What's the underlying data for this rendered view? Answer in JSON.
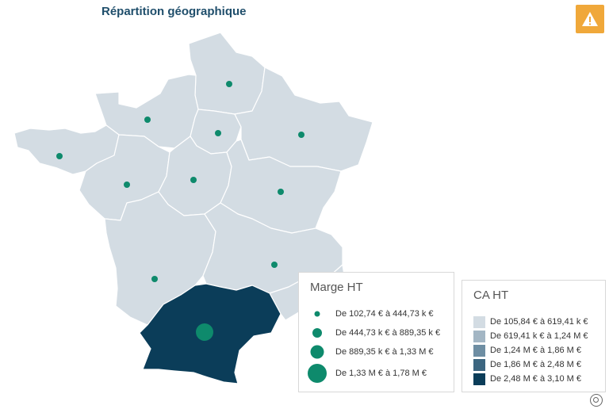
{
  "title": "Répartition géographique",
  "colors": {
    "region_default": "#d3dce3",
    "region_highlight": "#0b3d59",
    "dot": "#0e8a6c",
    "warning": "#f0a83a"
  },
  "warning_button": {
    "icon": "warning-triangle-icon"
  },
  "legend_marge": {
    "title": "Marge HT",
    "items": [
      {
        "label": "De 102,74 € à 444,73 k €"
      },
      {
        "label": "De 444,73 k € à 889,35 k €"
      },
      {
        "label": "De 889,35 k € à 1,33 M €"
      },
      {
        "label": "De 1,33 M € à 1,78 M €"
      }
    ]
  },
  "legend_ca": {
    "title": "CA HT",
    "items": [
      {
        "label": "De 105,84 € à 619,41 k €",
        "color": "#d3dce3"
      },
      {
        "label": "De 619,41 k € à 1,24 M €",
        "color": "#a3b6c4"
      },
      {
        "label": "De 1,24 M € à 1,86 M €",
        "color": "#6e8ea3"
      },
      {
        "label": "De 1,86 M € à 2,48 M €",
        "color": "#3c6680"
      },
      {
        "label": "De 2,48 M € à 3,10 M €",
        "color": "#0b3d59"
      }
    ]
  },
  "zoom_button": {
    "icon": "zoom-icon"
  }
}
